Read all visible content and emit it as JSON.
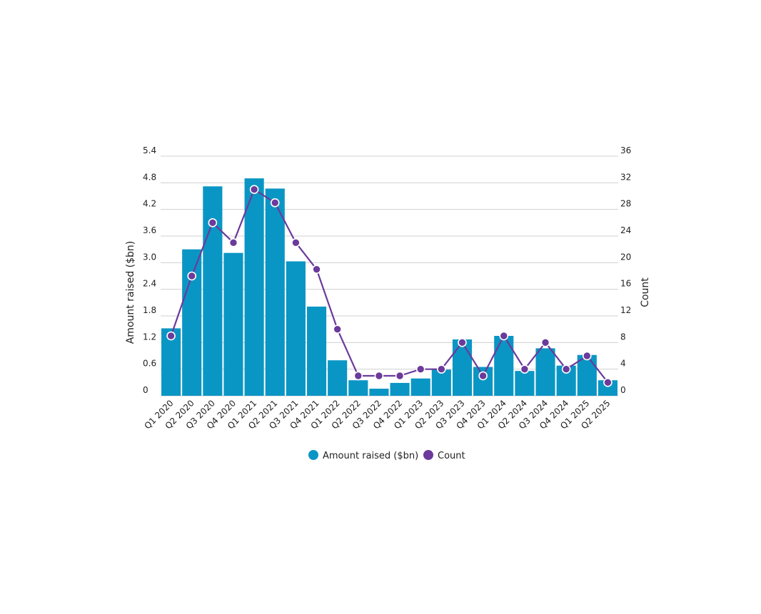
{
  "chart_data": {
    "type": "bar",
    "title": "",
    "categories": [
      "Q1 2020",
      "Q2 2020",
      "Q3 2020",
      "Q4 2020",
      "Q1 2021",
      "Q2 2021",
      "Q3 2021",
      "Q4 2021",
      "Q1 2022",
      "Q2 2022",
      "Q3 2022",
      "Q4 2022",
      "Q1 2023",
      "Q2 2023",
      "Q3 2023",
      "Q4 2023",
      "Q1 2024",
      "Q2 2024",
      "Q3 2024",
      "Q4 2024",
      "Q1 2025",
      "Q2 2025"
    ],
    "series": [
      {
        "name": "Amount raised ($bn)",
        "type": "bar",
        "axis": "left",
        "color": "#0a96c4",
        "values": [
          1.52,
          3.3,
          4.72,
          3.22,
          4.9,
          4.67,
          3.03,
          2.01,
          0.8,
          0.35,
          0.16,
          0.29,
          0.39,
          0.59,
          1.27,
          0.65,
          1.35,
          0.56,
          1.07,
          0.68,
          0.92,
          0.35
        ]
      },
      {
        "name": "Count",
        "type": "line",
        "axis": "right",
        "color": "#6b3a9b",
        "values": [
          9,
          18,
          26,
          23,
          31,
          29,
          23,
          19,
          10,
          3,
          3,
          3,
          4,
          4,
          8,
          3,
          9,
          4,
          8,
          4,
          6,
          2
        ]
      }
    ],
    "ylabel": "Amount raised ($bn)",
    "y2label": "Count",
    "ylim": [
      0,
      5.4
    ],
    "y2lim": [
      0,
      36
    ],
    "yticks": [
      "0",
      "0.6",
      "1.2",
      "1.8",
      "2.4",
      "3.0",
      "3.6",
      "4.2",
      "4.8",
      "5.4"
    ],
    "y2ticks": [
      "0",
      "4",
      "8",
      "12",
      "16",
      "20",
      "24",
      "28",
      "32",
      "36"
    ],
    "grid": true,
    "legend_position": "bottom-center"
  }
}
